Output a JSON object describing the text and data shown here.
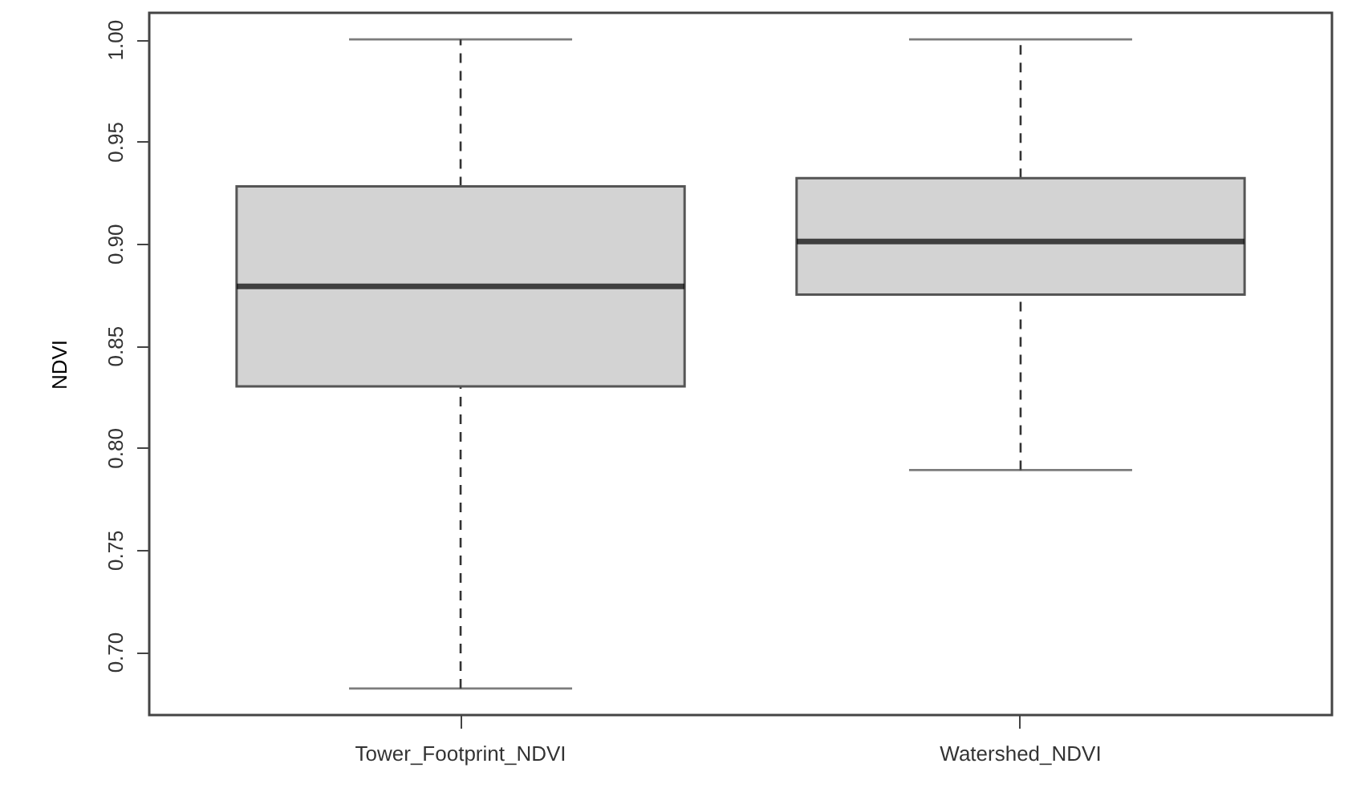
{
  "chart_data": {
    "type": "box",
    "ylabel": "NDVI",
    "categories": [
      "Tower_Footprint_NDVI",
      "Watershed_NDVI"
    ],
    "boxes": [
      {
        "low": 0.682,
        "q1": 0.83,
        "median": 0.879,
        "q3": 0.928,
        "high": 1.0
      },
      {
        "low": 0.789,
        "q1": 0.875,
        "median": 0.901,
        "q3": 0.932,
        "high": 1.0
      }
    ],
    "color": "#d3d3d3",
    "ylim": [
      0.669,
      1.013
    ],
    "yticks": [
      {
        "value": 0.7,
        "label": "0.70"
      },
      0.75,
      {
        "value": 0.8,
        "label": "0.80"
      },
      0.85,
      {
        "value": 0.9,
        "label": "0.90"
      },
      0.95,
      {
        "value": 1,
        "label": "1.00"
      }
    ],
    "grid": false
  }
}
